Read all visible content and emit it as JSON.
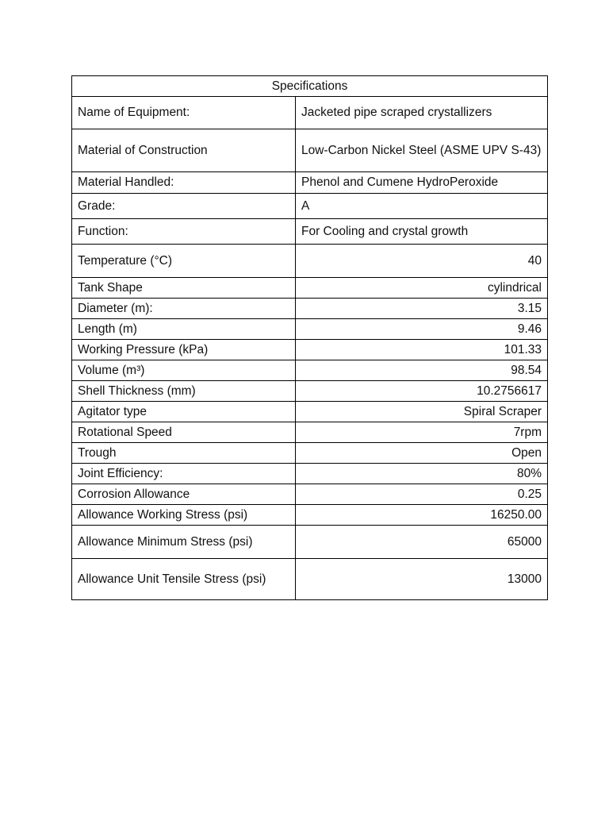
{
  "table": {
    "title": "Specifications",
    "rows": [
      {
        "label": "Name of Equipment:",
        "value": "Jacketed pipe scraped crystallizers"
      },
      {
        "label": "Material of Construction",
        "value": "Low-Carbon Nickel Steel (ASME UPV S-43)"
      },
      {
        "label": "Material Handled:",
        "value": "Phenol and Cumene HydroPeroxide"
      },
      {
        "label": "Grade:",
        "value": "A"
      },
      {
        "label": "Function:",
        "value": "For Cooling and crystal growth"
      },
      {
        "label": "Temperature (°C)",
        "value": "40"
      },
      {
        "label": "Tank Shape",
        "value": "cylindrical"
      },
      {
        "label": "Diameter (m):",
        "value": "3.15"
      },
      {
        "label": "Length (m)",
        "value": "9.46"
      },
      {
        "label": "Working Pressure (kPa)",
        "value": "101.33"
      },
      {
        "label": "Volume (m³)",
        "value": "98.54"
      },
      {
        "label": "Shell Thickness (mm)",
        "value": "10.2756617"
      },
      {
        "label": "Agitator type",
        "value": "Spiral Scraper"
      },
      {
        "label": "Rotational Speed",
        "value": "7rpm"
      },
      {
        "label": "Trough",
        "value": "Open"
      },
      {
        "label": "Joint Efficiency:",
        "value": "80%"
      },
      {
        "label": "Corrosion Allowance",
        "value": "0.25"
      },
      {
        "label": "Allowance Working Stress (psi)",
        "value": "16250.00"
      },
      {
        "label": "Allowance Minimum Stress (psi)",
        "value": "65000"
      },
      {
        "label": "Allowance Unit Tensile Stress (psi)",
        "value": "13000"
      }
    ]
  }
}
